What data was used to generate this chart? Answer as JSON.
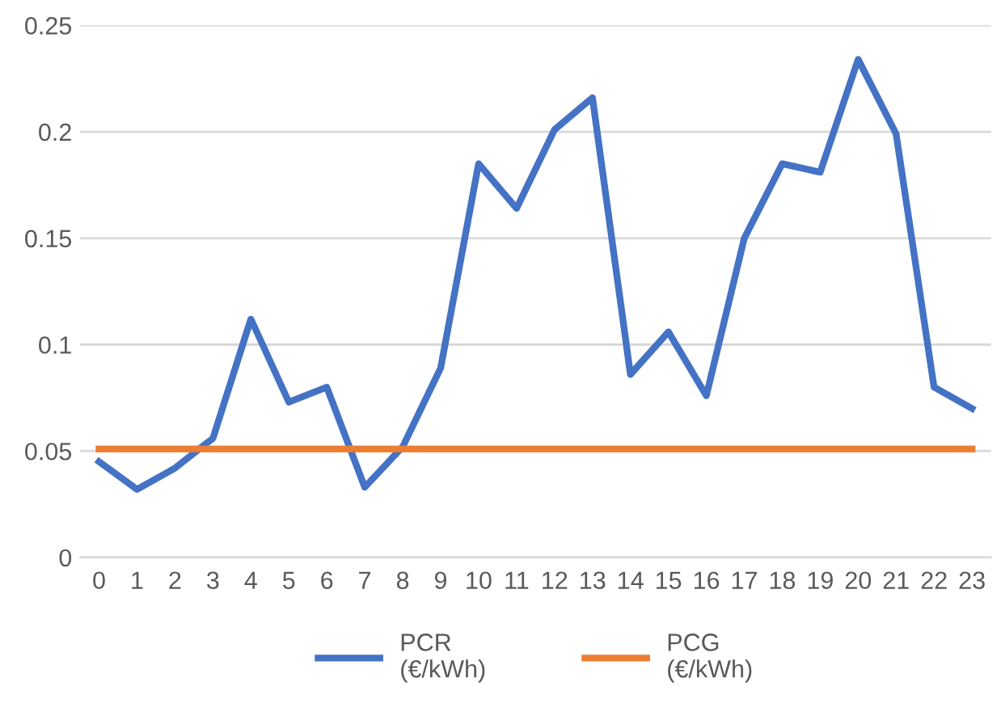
{
  "chart_data": {
    "type": "line",
    "categories": [
      "0",
      "1",
      "2",
      "3",
      "4",
      "5",
      "6",
      "7",
      "8",
      "9",
      "10",
      "11",
      "12",
      "13",
      "14",
      "15",
      "16",
      "17",
      "18",
      "19",
      "20",
      "21",
      "22",
      "23"
    ],
    "series": [
      {
        "name": "PCR\n(€/kWh)",
        "color": "#4472c4",
        "values": [
          0.045,
          0.032,
          0.042,
          0.056,
          0.112,
          0.073,
          0.08,
          0.033,
          0.052,
          0.089,
          0.185,
          0.164,
          0.201,
          0.216,
          0.086,
          0.106,
          0.076,
          0.15,
          0.185,
          0.181,
          0.234,
          0.199,
          0.08,
          0.07
        ]
      },
      {
        "name": "PCG\n(€/kWh)",
        "color": "#ed7d31",
        "values": [
          0.051,
          0.051,
          0.051,
          0.051,
          0.051,
          0.051,
          0.051,
          0.051,
          0.051,
          0.051,
          0.051,
          0.051,
          0.051,
          0.051,
          0.051,
          0.051,
          0.051,
          0.051,
          0.051,
          0.051,
          0.051,
          0.051,
          0.051,
          0.051
        ]
      }
    ],
    "ylim": [
      0,
      0.25
    ],
    "yticks": [
      0,
      0.05,
      0.1,
      0.15,
      0.2,
      0.25
    ],
    "grid": "y",
    "legend": "bottom"
  }
}
